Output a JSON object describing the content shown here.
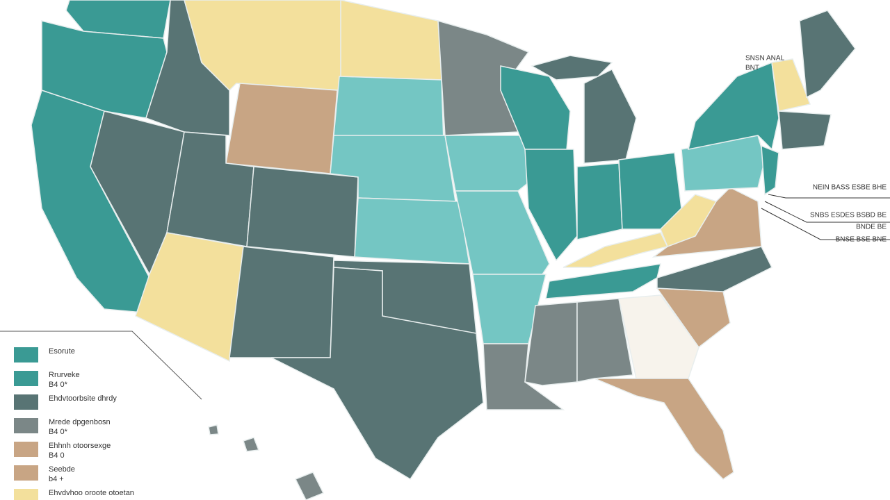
{
  "legend": [
    {
      "color": "#3a9a94",
      "lines": [
        "Esorute"
      ]
    },
    {
      "color": "#3a9a94",
      "lines": [
        "Rrurveke",
        "B4 0*"
      ]
    },
    {
      "color": "#587474",
      "lines": [
        "Ehdvtoorbsite dhrdy"
      ]
    },
    {
      "color": "#7b8787",
      "lines": [
        "Mrede dpgenbosn",
        "B4 0*"
      ]
    },
    {
      "color": "#c8a584",
      "lines": [
        "Ehhnh otoorsexge",
        "B4 0"
      ]
    },
    {
      "color": "#c8a584",
      "lines": [
        "Seebde",
        "b4 +"
      ]
    },
    {
      "color": "#f3e09c",
      "lines": [
        "Ehvdvhoo oroote otoetan"
      ]
    }
  ],
  "callouts": {
    "top": [
      "SNSN ANAL",
      "BNT"
    ],
    "right": [
      "NEIN BASS ESBE BHE",
      "SNBS ESDES BSBD BE",
      "BNDE BE",
      "BNSE BSE BNE"
    ]
  }
}
